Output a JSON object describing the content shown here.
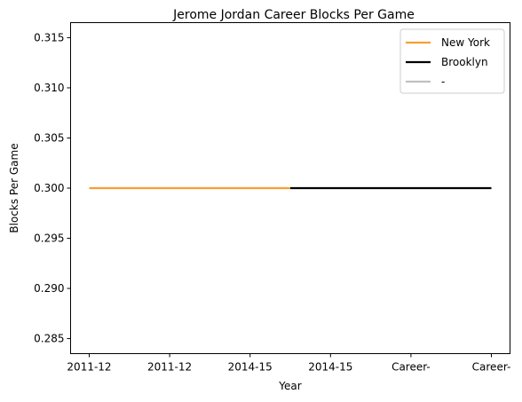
{
  "chart_data": {
    "type": "line",
    "title": "Jerome Jordan Career Blocks Per Game",
    "xlabel": "Year",
    "ylabel": "Blocks Per Game",
    "categories": [
      "2011-12",
      "2011-12",
      "2014-15",
      "2014-15",
      "Career-",
      "Career-"
    ],
    "yticks": [
      "0.285",
      "0.290",
      "0.295",
      "0.300",
      "0.305",
      "0.310",
      "0.315"
    ],
    "ylim": [
      0.2835,
      0.3165
    ],
    "grid": false,
    "legend_position": "top-right",
    "series": [
      {
        "name": "New York",
        "color": "#f5a030",
        "x": [
          0,
          2.5
        ],
        "values": [
          0.3,
          0.3
        ]
      },
      {
        "name": "Brooklyn",
        "color": "#000000",
        "x": [
          2.5,
          5
        ],
        "values": [
          0.3,
          0.3
        ]
      },
      {
        "name": "-",
        "color": "#c0c0c0",
        "x": [],
        "values": []
      }
    ]
  }
}
